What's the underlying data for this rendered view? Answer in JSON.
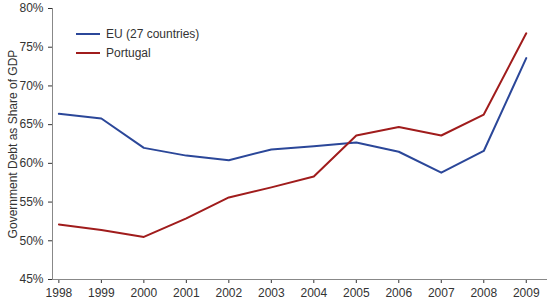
{
  "chart_data": {
    "type": "line",
    "y_label": "Government Debt as Share of GDP",
    "x": [
      1998,
      1999,
      2000,
      2001,
      2002,
      2003,
      2004,
      2005,
      2006,
      2007,
      2008,
      2009
    ],
    "series": [
      {
        "name": "EU (27 countries)",
        "color": "#2b4799",
        "values": [
          66.4,
          65.8,
          62.0,
          61.0,
          60.4,
          61.8,
          62.2,
          62.7,
          61.5,
          58.8,
          61.6,
          73.6
        ]
      },
      {
        "name": "Portugal",
        "color": "#a01c1c",
        "values": [
          52.1,
          51.4,
          50.5,
          52.9,
          55.6,
          56.9,
          58.3,
          63.6,
          64.7,
          63.6,
          66.3,
          76.8
        ]
      }
    ],
    "xlim": [
      1997.85,
      2009.5
    ],
    "xticks": [
      1998,
      1999,
      2000,
      2001,
      2002,
      2003,
      2004,
      2005,
      2006,
      2007,
      2008,
      2009
    ],
    "ylim": [
      45,
      80
    ],
    "yticks": [
      {
        "value": 45,
        "label": "45%"
      },
      {
        "value": 50,
        "label": "50%"
      },
      {
        "value": 55,
        "label": "55%"
      },
      {
        "value": 60,
        "label": "60%"
      },
      {
        "value": 65,
        "label": "65%"
      },
      {
        "value": 70,
        "label": "70%"
      },
      {
        "value": 75,
        "label": "75%"
      },
      {
        "value": 80,
        "label": "80%"
      }
    ],
    "grid": false,
    "legend": "upper left"
  }
}
